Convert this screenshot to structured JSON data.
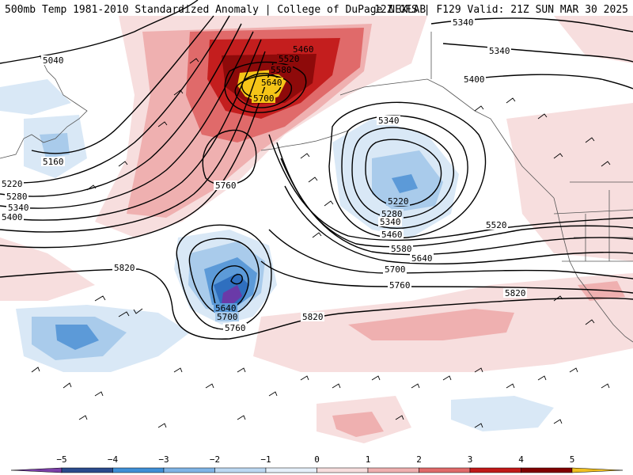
{
  "header": {
    "left": "500mb Temp 1981-2010 Standardized Anomaly | College of DuPage NEXLAB",
    "right": "12Z GFS | F129 Valid: 21Z SUN MAR 30 2025"
  },
  "contour_labels": [
    "5040",
    "5160",
    "5220",
    "5280",
    "5340",
    "5400",
    "5460",
    "5520",
    "5580",
    "5640",
    "5700",
    "5760",
    "5820"
  ],
  "colorbar": {
    "ticks": [
      "−5",
      "−4",
      "−3",
      "−2",
      "−1",
      "0",
      "1",
      "2",
      "3",
      "4",
      "5"
    ],
    "colors": [
      "#7b3fa8",
      "#2a4a8c",
      "#3f8fd6",
      "#7fb4e6",
      "#bcd8f2",
      "#e6f0fa",
      "#f7dede",
      "#efb0b0",
      "#e06a6a",
      "#c01818",
      "#800000",
      "#f0c020"
    ]
  },
  "anomaly_colors": {
    "pos1": "#f6d8d8",
    "pos2": "#eea9a9",
    "pos3": "#dd5a5a",
    "pos4": "#c41e1e",
    "pos5": "#8e0a0a",
    "pos6": "#f5c518",
    "neg1": "#d9e8f6",
    "neg2": "#a9cbeb",
    "neg3": "#5c9ad8",
    "neg4": "#2f6fbf",
    "neg5": "#6a3aa8"
  }
}
